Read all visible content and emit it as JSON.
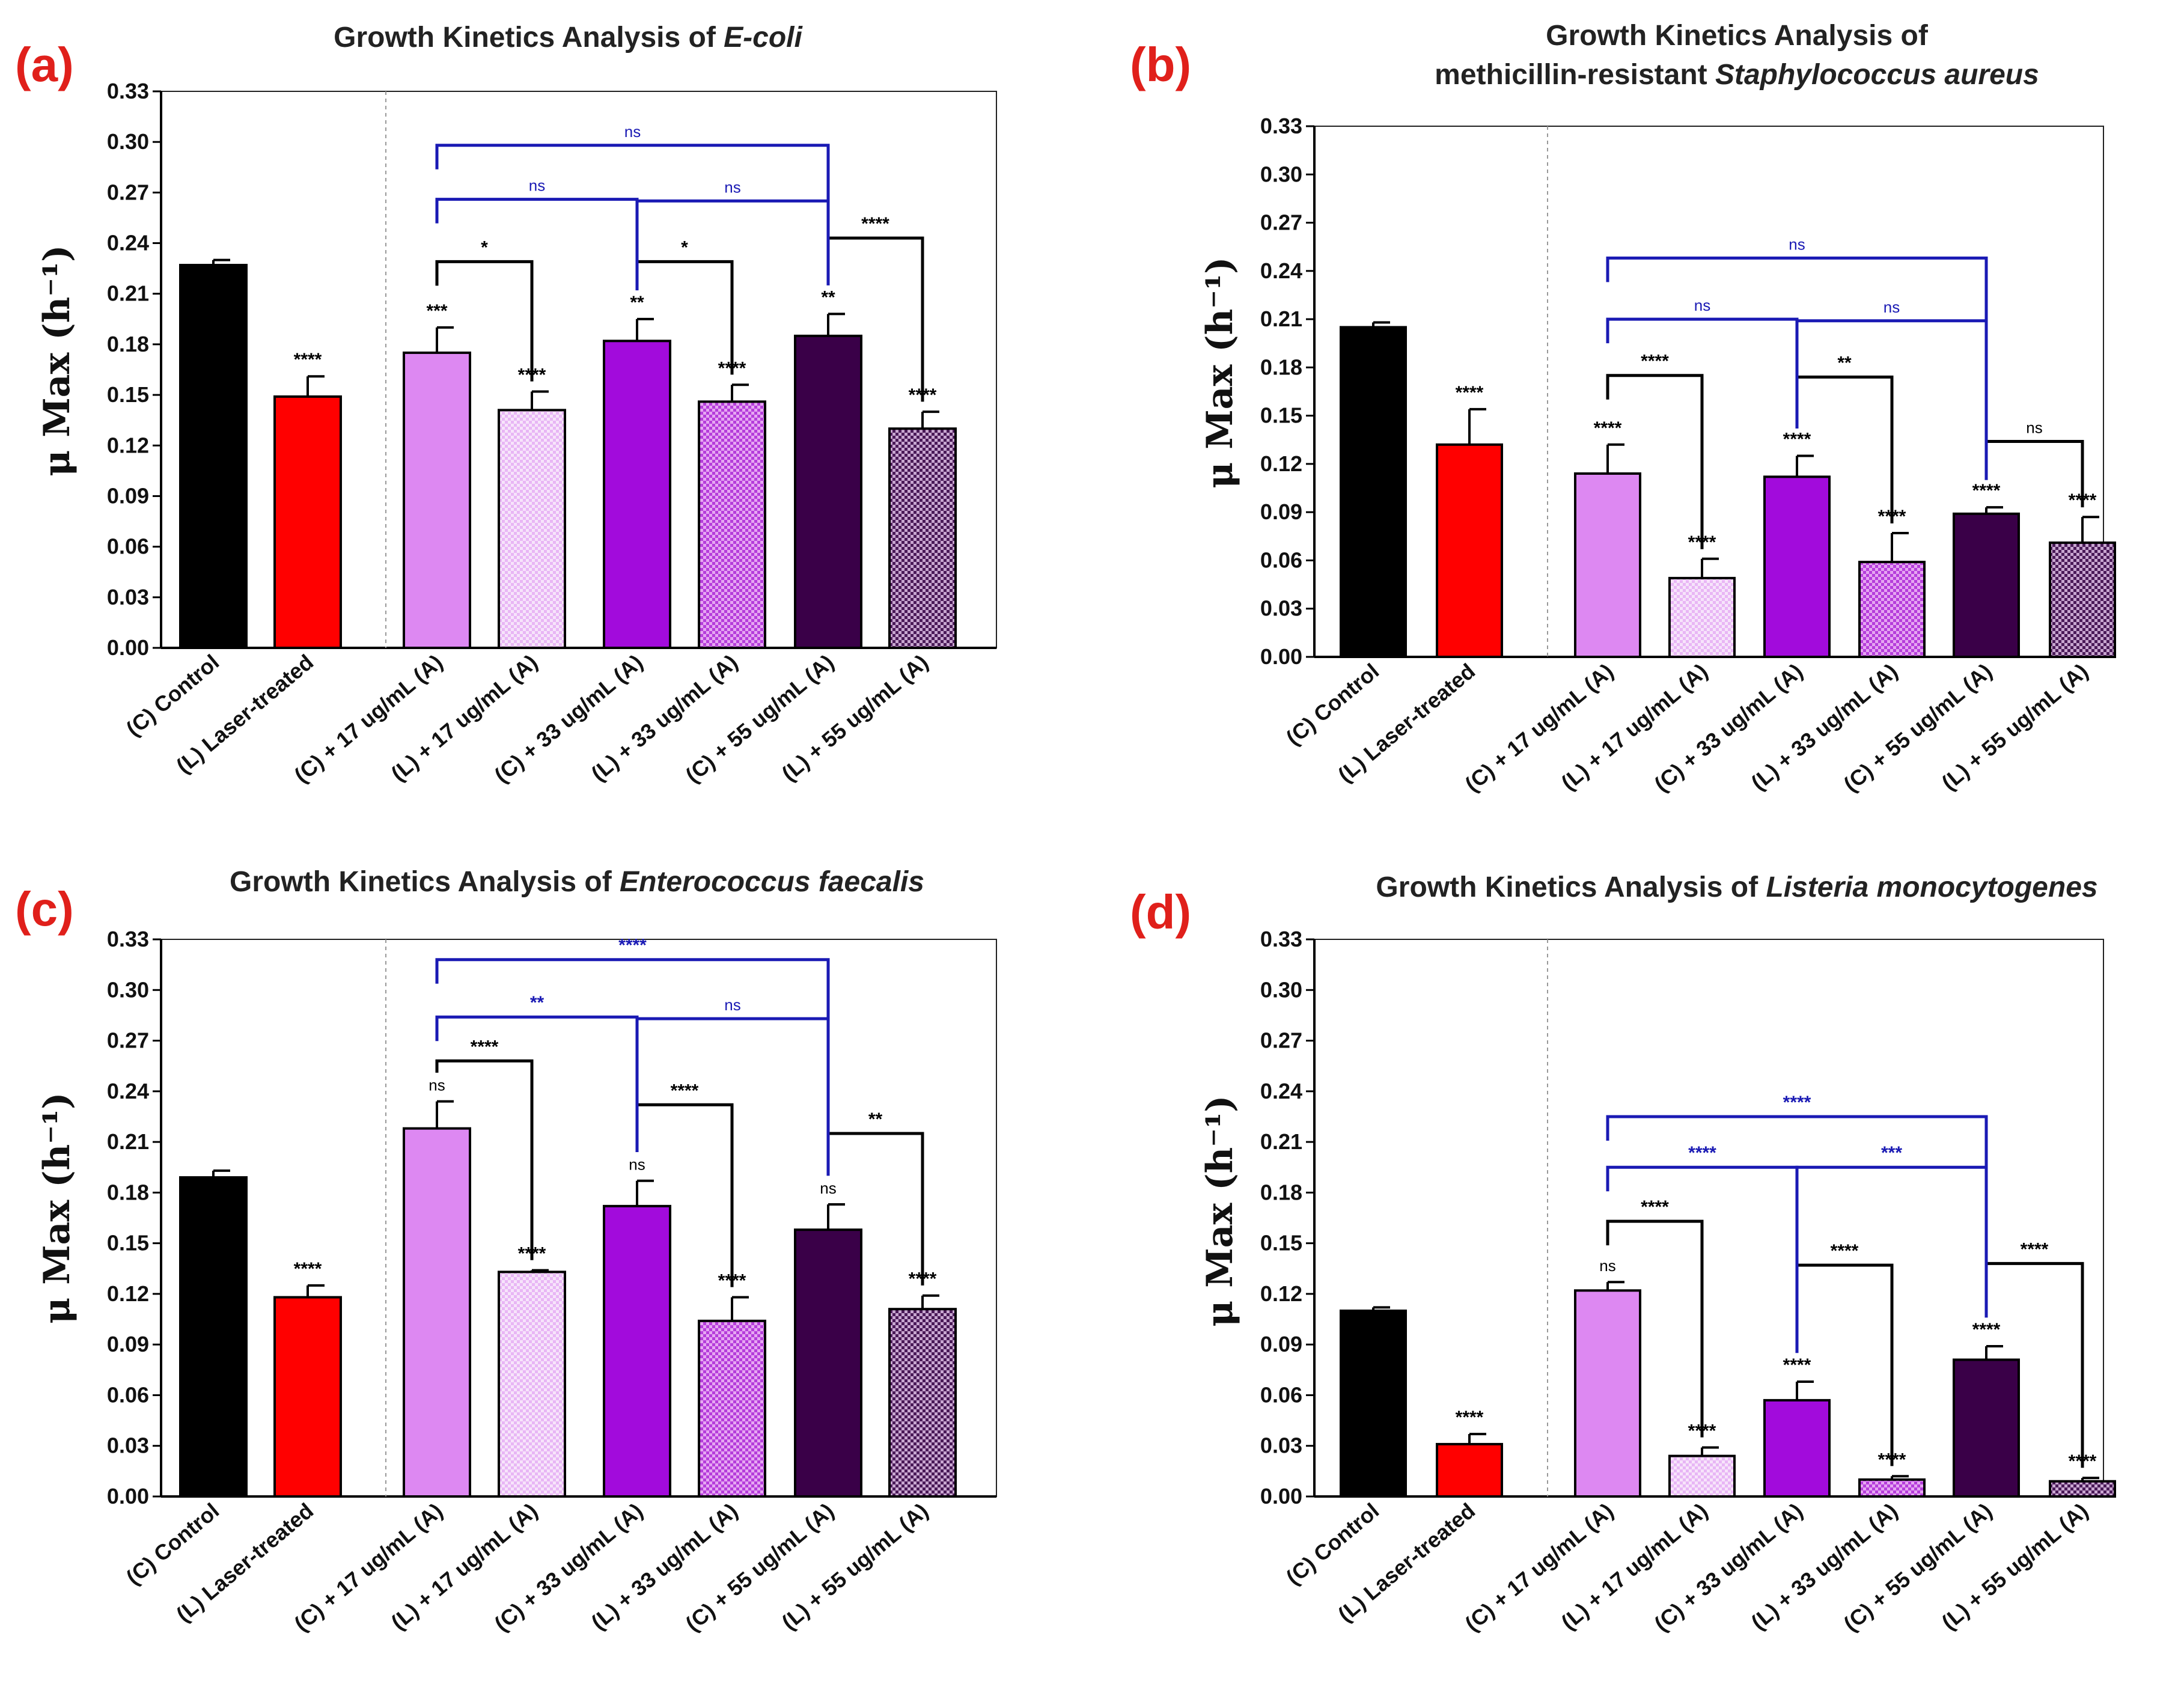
{
  "figure": {
    "categories": [
      "(C) Control",
      "(L) Laser-treated",
      "(C) + 17 ug/mL (A)",
      "(L) + 17 ug/mL (A)",
      "(C) + 33 ug/mL (A)",
      "(L) + 33 ug/mL (A)",
      "(C) + 55 ug/mL (A)",
      "(L) + 55 ug/mL (A)"
    ],
    "ylabel": "μ Max (h⁻¹)",
    "yticks": [
      "0.00",
      "0.03",
      "0.06",
      "0.09",
      "0.12",
      "0.15",
      "0.18",
      "0.21",
      "0.24",
      "0.27",
      "0.30",
      "0.33"
    ],
    "colors": {
      "control": "#000000",
      "laser": "#ff0000",
      "c17": "#dd88f2",
      "l17": "#f0d0f8",
      "c33": "#a20bdc",
      "l33": "#cc66e6",
      "c55": "#3a0048",
      "l55": "#8a5a96",
      "sig_black": "#000000",
      "sig_blue": "#1a1ab4",
      "label_red": "#e0201b"
    }
  },
  "chart_data": [
    {
      "type": "bar",
      "panel": "(a)",
      "title": "Growth Kinetics Analysis of ",
      "title_italic": "E-coli",
      "ylabel": "μ Max (h⁻¹)",
      "ylim": [
        0,
        0.33
      ],
      "categories": [
        "(C) Control",
        "(L) Laser-treated",
        "(C) + 17 ug/mL (A)",
        "(L) + 17 ug/mL (A)",
        "(C) + 33 ug/mL (A)",
        "(L) + 33 ug/mL (A)",
        "(C) + 55 ug/mL (A)",
        "(L) + 55 ug/mL (A)"
      ],
      "values": [
        0.227,
        0.149,
        0.175,
        0.141,
        0.182,
        0.146,
        0.185,
        0.13
      ],
      "errors": [
        0.003,
        0.012,
        0.015,
        0.011,
        0.013,
        0.01,
        0.013,
        0.01
      ],
      "bar_labels": [
        "",
        "****",
        "***",
        "****",
        "**",
        "****",
        "**",
        "****"
      ],
      "comparisons": [
        {
          "from": 2,
          "to": 3,
          "label": "*",
          "color": "black",
          "level": 0.229
        },
        {
          "from": 4,
          "to": 5,
          "label": "*",
          "color": "black",
          "level": 0.229
        },
        {
          "from": 6,
          "to": 7,
          "label": "****",
          "color": "black",
          "level": 0.243
        },
        {
          "from": 2,
          "to": 4,
          "label": "ns",
          "color": "blue",
          "level": 0.266
        },
        {
          "from": 4,
          "to": 6,
          "label": "ns",
          "color": "blue",
          "level": 0.265
        },
        {
          "from": 2,
          "to": 6,
          "label": "ns",
          "color": "blue",
          "level": 0.298
        }
      ]
    },
    {
      "type": "bar",
      "panel": "(b)",
      "title": "Growth Kinetics Analysis of",
      "title_line2": "methicillin-resistant ",
      "title_italic": "Staphylococcus aureus",
      "ylabel": "μ Max (h⁻¹)",
      "ylim": [
        0,
        0.33
      ],
      "categories": [
        "(C) Control",
        "(L) Laser-treated",
        "(C) + 17 ug/mL (A)",
        "(L) + 17 ug/mL (A)",
        "(C) + 33 ug/mL (A)",
        "(L) + 33 ug/mL (A)",
        "(C) + 55 ug/mL (A)",
        "(L) + 55 ug/mL (A)"
      ],
      "values": [
        0.205,
        0.132,
        0.114,
        0.049,
        0.112,
        0.059,
        0.089,
        0.071
      ],
      "errors": [
        0.003,
        0.022,
        0.018,
        0.012,
        0.013,
        0.018,
        0.004,
        0.016
      ],
      "bar_labels": [
        "",
        "****",
        "****",
        "****",
        "****",
        "****",
        "****",
        "****"
      ],
      "comparisons": [
        {
          "from": 2,
          "to": 3,
          "label": "****",
          "color": "black",
          "level": 0.175
        },
        {
          "from": 4,
          "to": 5,
          "label": "**",
          "color": "black",
          "level": 0.174
        },
        {
          "from": 6,
          "to": 7,
          "label": "ns",
          "color": "black",
          "level": 0.134
        },
        {
          "from": 2,
          "to": 4,
          "label": "ns",
          "color": "blue",
          "level": 0.21
        },
        {
          "from": 4,
          "to": 6,
          "label": "ns",
          "color": "blue",
          "level": 0.209
        },
        {
          "from": 2,
          "to": 6,
          "label": "ns",
          "color": "blue",
          "level": 0.248
        }
      ]
    },
    {
      "type": "bar",
      "panel": "(c)",
      "title": "Growth Kinetics Analysis of ",
      "title_italic": "Enterococcus faecalis",
      "ylabel": "μ Max (h⁻¹)",
      "ylim": [
        0,
        0.33
      ],
      "categories": [
        "(C) Control",
        "(L) Laser-treated",
        "(C) + 17 ug/mL (A)",
        "(L) + 17 ug/mL (A)",
        "(C) + 33 ug/mL (A)",
        "(L) + 33 ug/mL (A)",
        "(C) + 55 ug/mL (A)",
        "(L) + 55 ug/mL (A)"
      ],
      "values": [
        0.189,
        0.118,
        0.218,
        0.133,
        0.172,
        0.104,
        0.158,
        0.111
      ],
      "errors": [
        0.004,
        0.007,
        0.016,
        0.001,
        0.015,
        0.014,
        0.015,
        0.008
      ],
      "bar_labels": [
        "",
        "****",
        "ns",
        "****",
        "ns",
        "****",
        "ns",
        "****"
      ],
      "comparisons": [
        {
          "from": 2,
          "to": 3,
          "label": "****",
          "color": "black",
          "level": 0.258
        },
        {
          "from": 4,
          "to": 5,
          "label": "****",
          "color": "black",
          "level": 0.232
        },
        {
          "from": 6,
          "to": 7,
          "label": "**",
          "color": "black",
          "level": 0.215
        },
        {
          "from": 2,
          "to": 4,
          "label": "**",
          "color": "blue",
          "level": 0.284
        },
        {
          "from": 4,
          "to": 6,
          "label": "ns",
          "color": "blue",
          "level": 0.283
        },
        {
          "from": 2,
          "to": 6,
          "label": "****",
          "color": "blue",
          "level": 0.318
        }
      ]
    },
    {
      "type": "bar",
      "panel": "(d)",
      "title": "Growth Kinetics Analysis of ",
      "title_italic": "Listeria monocytogenes",
      "ylabel": "μ Max (h⁻¹)",
      "ylim": [
        0,
        0.33
      ],
      "categories": [
        "(C) Control",
        "(L) Laser-treated",
        "(C) + 17 ug/mL (A)",
        "(L) + 17 ug/mL (A)",
        "(C) + 33 ug/mL (A)",
        "(L) + 33 ug/mL (A)",
        "(C) + 55 ug/mL (A)",
        "(L) + 55 ug/mL (A)"
      ],
      "values": [
        0.11,
        0.031,
        0.122,
        0.024,
        0.057,
        0.01,
        0.081,
        0.009
      ],
      "errors": [
        0.002,
        0.006,
        0.005,
        0.005,
        0.011,
        0.002,
        0.008,
        0.002
      ],
      "bar_labels": [
        "",
        "****",
        "ns",
        "****",
        "****",
        "****",
        "****",
        "****"
      ],
      "comparisons": [
        {
          "from": 2,
          "to": 3,
          "label": "****",
          "color": "black",
          "level": 0.163
        },
        {
          "from": 4,
          "to": 5,
          "label": "****",
          "color": "black",
          "level": 0.137
        },
        {
          "from": 6,
          "to": 7,
          "label": "****",
          "color": "black",
          "level": 0.138
        },
        {
          "from": 2,
          "to": 4,
          "label": "****",
          "color": "blue",
          "level": 0.195
        },
        {
          "from": 4,
          "to": 6,
          "label": "***",
          "color": "blue",
          "level": 0.195
        },
        {
          "from": 2,
          "to": 6,
          "label": "****",
          "color": "blue",
          "level": 0.225
        }
      ]
    }
  ]
}
